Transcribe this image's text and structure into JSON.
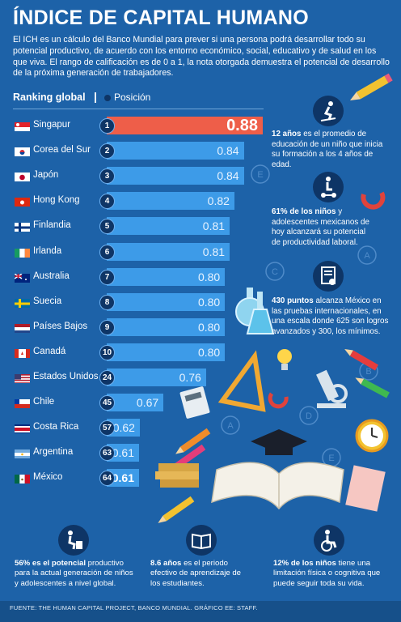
{
  "title": "ÍNDICE DE CAPITAL HUMANO",
  "intro": "El ICH es un cálculo del Banco Mundial para prever si una persona podrá desarrollar todo su potencial productivo, de acuerdo con los entorno económico, social, educativo y de salud en los que viva. El rango de calificación es de 0 a 1, la nota otorgada demuestra el potencial de desarrollo de la próxima generación de trabajadores.",
  "ranking": {
    "heading": "Ranking global",
    "separator": "|",
    "legend": "Posición"
  },
  "colors": {
    "background": "#1d62a8",
    "bar": "#3d9be8",
    "bar_highlight": "#ee5e49",
    "badge": "#0e3566"
  },
  "chart_data": {
    "type": "bar",
    "orientation": "horizontal",
    "categories": [
      "Singapur",
      "Corea del Sur",
      "Japón",
      "Hong Kong",
      "Finlandia",
      "Irlanda",
      "Australia",
      "Suecia",
      "Países Bajos",
      "Canadá",
      "Estados Unidos",
      "Chile",
      "Costa Rica",
      "Argentina",
      "México"
    ],
    "values": [
      0.88,
      0.84,
      0.84,
      0.82,
      0.81,
      0.81,
      0.8,
      0.8,
      0.8,
      0.8,
      0.76,
      0.67,
      0.62,
      0.61,
      0.61
    ],
    "value_labels": [
      "0.88",
      "0.84",
      "0.84",
      "0.82",
      "0.81",
      "0.81",
      "0.80",
      "0.80",
      "0.80",
      "0.80",
      "0.76",
      "0.67",
      "0.62",
      "0.61",
      "0.61"
    ],
    "positions": [
      "1",
      "2",
      "3",
      "4",
      "5",
      "6",
      "7",
      "8",
      "9",
      "10",
      "24",
      "45",
      "57",
      "63",
      "64"
    ],
    "flags": [
      "singapore-flag",
      "south-korea-flag",
      "japan-flag",
      "hong-kong-flag",
      "finland-flag",
      "ireland-flag",
      "australia-flag",
      "sweden-flag",
      "netherlands-flag",
      "canada-flag",
      "usa-flag",
      "chile-flag",
      "costa-rica-flag",
      "argentina-flag",
      "mexico-flag"
    ],
    "highlight": [
      "Singapur",
      "México"
    ],
    "xlim": [
      0,
      1
    ]
  },
  "facts": {
    "f1": {
      "bold": "12 años",
      "text": " es el promedio de educación de un niño que inicia su formación a los 4 años de edad.",
      "icon": "skater-icon"
    },
    "f2": {
      "bold": "61% de los niños",
      "text": " y adolescentes mexicanos de hoy alcanzará su potencial de productividad laboral.",
      "icon": "scooter-icon"
    },
    "f3": {
      "bold": "430 puntos",
      "text": " alcanza México en las pruebas internacionales, en una escala donde 625 son logros avanzados y 300, los mínimos.",
      "icon": "certificate-icon"
    }
  },
  "bottom": {
    "b1": {
      "bold": "56% es el potencial",
      "text": " productivo para la actual generación de niños y adolescentes a nivel global.",
      "icon": "worker-icon"
    },
    "b2": {
      "bold": "8.6 años",
      "text": " es el periodo efectivo de aprendizaje de los estudiantes.",
      "icon": "open-book-icon"
    },
    "b3": {
      "bold": "12% de los niños",
      "text": " tiene una limitación física o cognitiva que puede seguir toda su vida.",
      "icon": "wheelchair-icon"
    }
  },
  "footer": "FUENTE: THE HUMAN CAPITAL PROJECT, BANCO MUNDIAL. GRÁFICO EE: STAFF."
}
